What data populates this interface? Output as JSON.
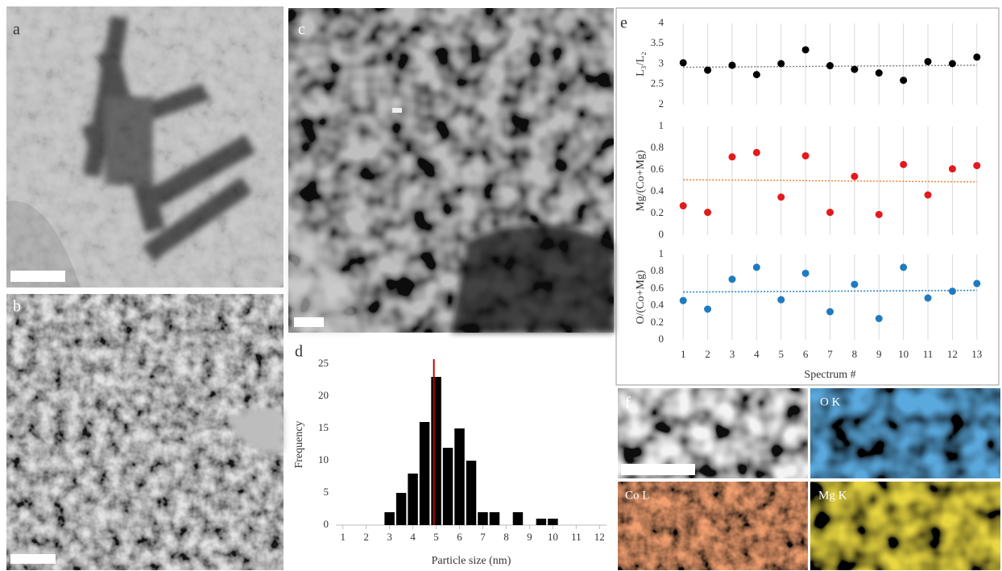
{
  "panel_labels": [
    "a",
    "b",
    "c",
    "d",
    "e",
    "f"
  ],
  "map_labels": [
    "O K",
    "Co L",
    "Mg K"
  ],
  "chart_data": [
    {
      "type": "histogram",
      "xlabel": "Particle size (nm)",
      "ylabel": "Frequency",
      "bins": [
        2.75,
        3.25,
        3.75,
        4.25,
        4.75,
        5.25,
        5.75,
        6.25,
        6.75,
        7.25,
        7.75,
        8.25,
        8.75,
        9.25,
        9.75,
        10.25
      ],
      "counts": [
        2,
        5,
        8,
        16,
        23,
        12,
        15,
        10,
        2,
        2,
        0,
        2,
        0,
        1,
        1
      ],
      "color": "#000000",
      "xlim": [
        0.7,
        12.3
      ],
      "xticks": [
        1,
        2,
        3,
        4,
        5,
        6,
        7,
        8,
        9,
        10,
        11,
        12
      ],
      "ylim": [
        0,
        25
      ],
      "yticks": [
        0,
        5,
        10,
        15,
        20,
        25
      ],
      "marker_line": {
        "x": 4.9,
        "color": "#c00000"
      }
    },
    {
      "type": "scatter",
      "ylabel": "L₃/L₂",
      "x": [
        1,
        2,
        3,
        4,
        5,
        6,
        7,
        8,
        9,
        10,
        11,
        12,
        13
      ],
      "values": [
        3.03,
        2.85,
        2.97,
        2.74,
        3.01,
        3.35,
        2.96,
        2.87,
        2.78,
        2.6,
        3.06,
        3.01,
        3.17
      ],
      "color": "#000000",
      "trend": [
        2.92,
        2.97
      ],
      "trend_color": "#7f7f7f",
      "xlim": [
        0.5,
        13.5
      ],
      "xticks": [
        1,
        2,
        3,
        4,
        5,
        6,
        7,
        8,
        9,
        10,
        11,
        12,
        13
      ],
      "ylim": [
        2,
        4
      ],
      "yticks": [
        2,
        2.5,
        3,
        3.5,
        4
      ]
    },
    {
      "type": "scatter",
      "ylabel": "Mg/(Co+Mg)",
      "x": [
        1,
        2,
        3,
        4,
        5,
        6,
        7,
        8,
        9,
        10,
        11,
        12,
        13
      ],
      "values": [
        0.27,
        0.21,
        0.72,
        0.76,
        0.35,
        0.73,
        0.21,
        0.54,
        0.19,
        0.65,
        0.37,
        0.61,
        0.64
      ],
      "color": "#e31a1c",
      "trend": [
        0.51,
        0.49
      ],
      "trend_color": "#ed7d31",
      "xlim": [
        0.5,
        13.5
      ],
      "xticks": [
        1,
        2,
        3,
        4,
        5,
        6,
        7,
        8,
        9,
        10,
        11,
        12,
        13
      ],
      "ylim": [
        0,
        1
      ],
      "yticks": [
        0,
        0.2,
        0.4,
        0.6,
        0.8,
        1
      ]
    },
    {
      "type": "scatter",
      "ylabel": "O/(Co+Mg)",
      "xlabel": "Spectrum #",
      "x": [
        1,
        2,
        3,
        4,
        5,
        6,
        7,
        8,
        9,
        10,
        11,
        12,
        13
      ],
      "values": [
        0.46,
        0.36,
        0.71,
        0.85,
        0.47,
        0.78,
        0.33,
        0.65,
        0.25,
        0.85,
        0.49,
        0.57,
        0.66
      ],
      "color": "#1f7bc1",
      "trend": [
        0.56,
        0.58
      ],
      "trend_color": "#1f7bc1",
      "xlim": [
        0.5,
        13.5
      ],
      "xticks": [
        1,
        2,
        3,
        4,
        5,
        6,
        7,
        8,
        9,
        10,
        11,
        12,
        13
      ],
      "ylim": [
        0,
        1
      ],
      "yticks": [
        0,
        0.2,
        0.4,
        0.6,
        0.8,
        1
      ]
    }
  ]
}
